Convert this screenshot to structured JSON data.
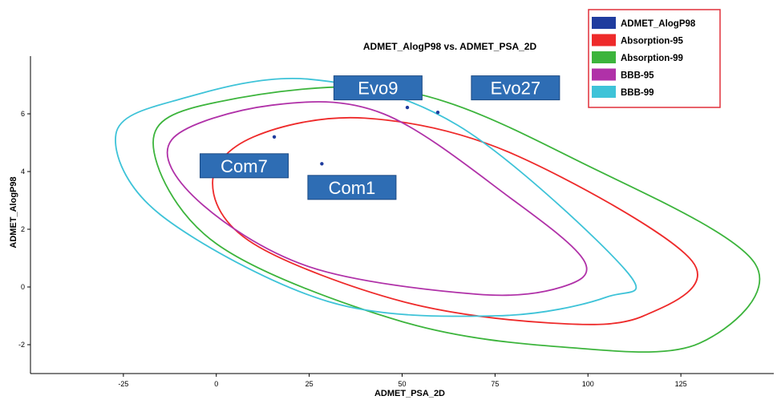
{
  "chart_data": {
    "type": "scatter",
    "title": "ADMET_AlogP98 vs. ADMET_PSA_2D",
    "xlabel": "ADMET_PSA_2D",
    "ylabel": "ADMET_AlogP98",
    "xlim": [
      -50,
      150
    ],
    "ylim": [
      -3,
      8
    ],
    "x_ticks": [
      -25,
      0,
      25,
      50,
      75,
      100,
      125
    ],
    "y_ticks": [
      -2,
      0,
      2,
      4,
      6
    ],
    "grid": false,
    "legend_position": "top-right",
    "legend": [
      {
        "label": "ADMET_AlogP98",
        "color": "#1f3c9e"
      },
      {
        "label": "Absorption-95",
        "color": "#ee2a2a"
      },
      {
        "label": "Absorption-99",
        "color": "#3cb43c"
      },
      {
        "label": "BBB-95",
        "color": "#b031a8"
      },
      {
        "label": "BBB-99",
        "color": "#3ec3d8"
      }
    ],
    "series": [
      {
        "name": "ADMET_AlogP98",
        "color": "#1f3c9e",
        "points": [
          {
            "x": 15.6,
            "y": 5.2
          },
          {
            "x": 28.4,
            "y": 4.27
          },
          {
            "x": 51.4,
            "y": 6.22
          },
          {
            "x": 59.6,
            "y": 6.05
          }
        ]
      }
    ],
    "ellipses": [
      {
        "name": "Absorption-95",
        "color": "#ee2a2a",
        "polyline": [
          [
            -1,
            3.6
          ],
          [
            10,
            5.2
          ],
          [
            40,
            5.85
          ],
          [
            80,
            4.6
          ],
          [
            128,
            0.9
          ],
          [
            115,
            -1.0
          ],
          [
            90,
            -1.25
          ],
          [
            50,
            -0.5
          ],
          [
            10,
            1.5
          ],
          [
            -1,
            3.6
          ]
        ]
      },
      {
        "name": "Absorption-99",
        "color": "#3cb43c",
        "polyline": [
          [
            -17,
            5.0
          ],
          [
            0,
            6.4
          ],
          [
            50,
            6.8
          ],
          [
            100,
            4.2
          ],
          [
            145,
            0.8
          ],
          [
            130,
            -1.95
          ],
          [
            95,
            -2.1
          ],
          [
            50,
            -1.2
          ],
          [
            0,
            1.5
          ],
          [
            -17,
            5.0
          ]
        ]
      },
      {
        "name": "BBB-95",
        "color": "#b031a8",
        "polyline": [
          [
            -12,
            5.1
          ],
          [
            15,
            6.3
          ],
          [
            45,
            6.0
          ],
          [
            80,
            3.0
          ],
          [
            99,
            0.9
          ],
          [
            93,
            0.0
          ],
          [
            70,
            -0.25
          ],
          [
            25,
            0.7
          ],
          [
            -5,
            3.0
          ],
          [
            -12,
            5.1
          ]
        ]
      },
      {
        "name": "BBB-99",
        "color": "#3ec3d8",
        "polyline": [
          [
            -27,
            5.3
          ],
          [
            -10,
            6.5
          ],
          [
            25,
            7.2
          ],
          [
            65,
            5.6
          ],
          [
            110,
            0.6
          ],
          [
            105,
            -0.35
          ],
          [
            75,
            -1.0
          ],
          [
            30,
            -0.5
          ],
          [
            -15,
            2.5
          ],
          [
            -27,
            5.3
          ]
        ]
      }
    ],
    "annotations": [
      {
        "label": "Evo9",
        "x": 43.5,
        "y": 6.9
      },
      {
        "label": "Evo27",
        "x": 80.5,
        "y": 6.9
      },
      {
        "label": "Com7",
        "x": 7.5,
        "y": 4.2
      },
      {
        "label": "Com1",
        "x": 36.5,
        "y": 3.45
      }
    ]
  }
}
